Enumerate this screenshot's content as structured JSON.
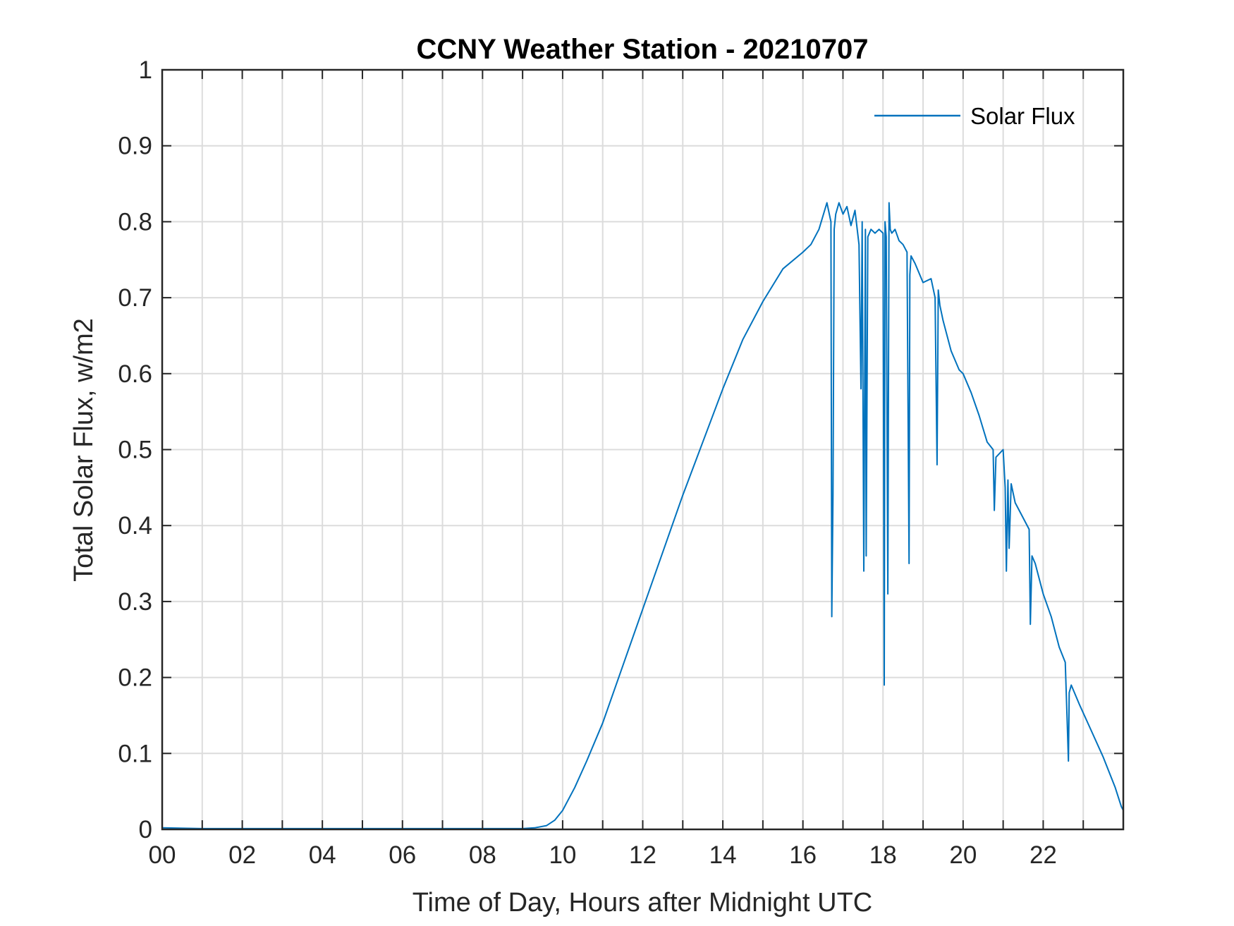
{
  "chart_data": {
    "type": "line",
    "title": "CCNY Weather Station - 20210707",
    "xlabel": "Time of Day, Hours after Midnight UTC",
    "ylabel": "Total Solar Flux, w/m2",
    "xlim": [
      0,
      24
    ],
    "ylim": [
      0,
      1
    ],
    "grid": true,
    "legend_position": "top-right",
    "x_tick_labels": [
      "00",
      "02",
      "04",
      "06",
      "08",
      "10",
      "12",
      "14",
      "16",
      "18",
      "20",
      "22"
    ],
    "y_tick_labels": [
      "0",
      "0.1",
      "0.2",
      "0.3",
      "0.4",
      "0.5",
      "0.6",
      "0.7",
      "0.8",
      "0.9",
      "1"
    ],
    "series": [
      {
        "name": "Solar Flux",
        "color": "#0072BD",
        "x": [
          0,
          1,
          2,
          3,
          4,
          5,
          6,
          7,
          8,
          9,
          9.3,
          9.6,
          9.8,
          10.0,
          10.3,
          10.6,
          11.0,
          11.5,
          12.0,
          12.5,
          13.0,
          13.5,
          14.0,
          14.5,
          15.0,
          15.5,
          16.0,
          16.2,
          16.4,
          16.6,
          16.7,
          16.72,
          16.75,
          16.78,
          16.82,
          16.9,
          17.0,
          17.1,
          17.2,
          17.3,
          17.4,
          17.45,
          17.48,
          17.52,
          17.56,
          17.58,
          17.62,
          17.7,
          17.8,
          17.9,
          18.0,
          18.03,
          18.05,
          18.08,
          18.12,
          18.15,
          18.18,
          18.22,
          18.3,
          18.4,
          18.5,
          18.6,
          18.65,
          18.67,
          18.7,
          18.8,
          19.0,
          19.2,
          19.3,
          19.35,
          19.38,
          19.42,
          19.5,
          19.7,
          19.9,
          20.0,
          20.2,
          20.4,
          20.6,
          20.75,
          20.78,
          20.82,
          21.0,
          21.05,
          21.08,
          21.12,
          21.15,
          21.2,
          21.3,
          21.5,
          21.65,
          21.68,
          21.72,
          21.8,
          22.0,
          22.2,
          22.4,
          22.55,
          22.6,
          22.63,
          22.65,
          22.7,
          22.9,
          23.2,
          23.5,
          23.8,
          23.95,
          24.0
        ],
        "y": [
          0.002,
          0.001,
          0.001,
          0.001,
          0.001,
          0.001,
          0.001,
          0.001,
          0.001,
          0.001,
          0.002,
          0.005,
          0.012,
          0.025,
          0.055,
          0.09,
          0.14,
          0.215,
          0.29,
          0.365,
          0.44,
          0.51,
          0.58,
          0.645,
          0.695,
          0.738,
          0.76,
          0.77,
          0.79,
          0.825,
          0.8,
          0.28,
          0.44,
          0.79,
          0.81,
          0.825,
          0.81,
          0.82,
          0.795,
          0.815,
          0.77,
          0.58,
          0.8,
          0.34,
          0.79,
          0.36,
          0.78,
          0.79,
          0.785,
          0.79,
          0.785,
          0.19,
          0.8,
          0.78,
          0.31,
          0.825,
          0.79,
          0.785,
          0.79,
          0.775,
          0.77,
          0.76,
          0.35,
          0.73,
          0.755,
          0.745,
          0.72,
          0.725,
          0.7,
          0.48,
          0.71,
          0.69,
          0.67,
          0.63,
          0.605,
          0.6,
          0.575,
          0.545,
          0.51,
          0.5,
          0.42,
          0.49,
          0.5,
          0.45,
          0.34,
          0.46,
          0.37,
          0.455,
          0.43,
          0.41,
          0.395,
          0.27,
          0.36,
          0.35,
          0.31,
          0.28,
          0.24,
          0.22,
          0.14,
          0.09,
          0.18,
          0.19,
          0.165,
          0.13,
          0.095,
          0.055,
          0.03,
          0.025
        ]
      }
    ]
  }
}
